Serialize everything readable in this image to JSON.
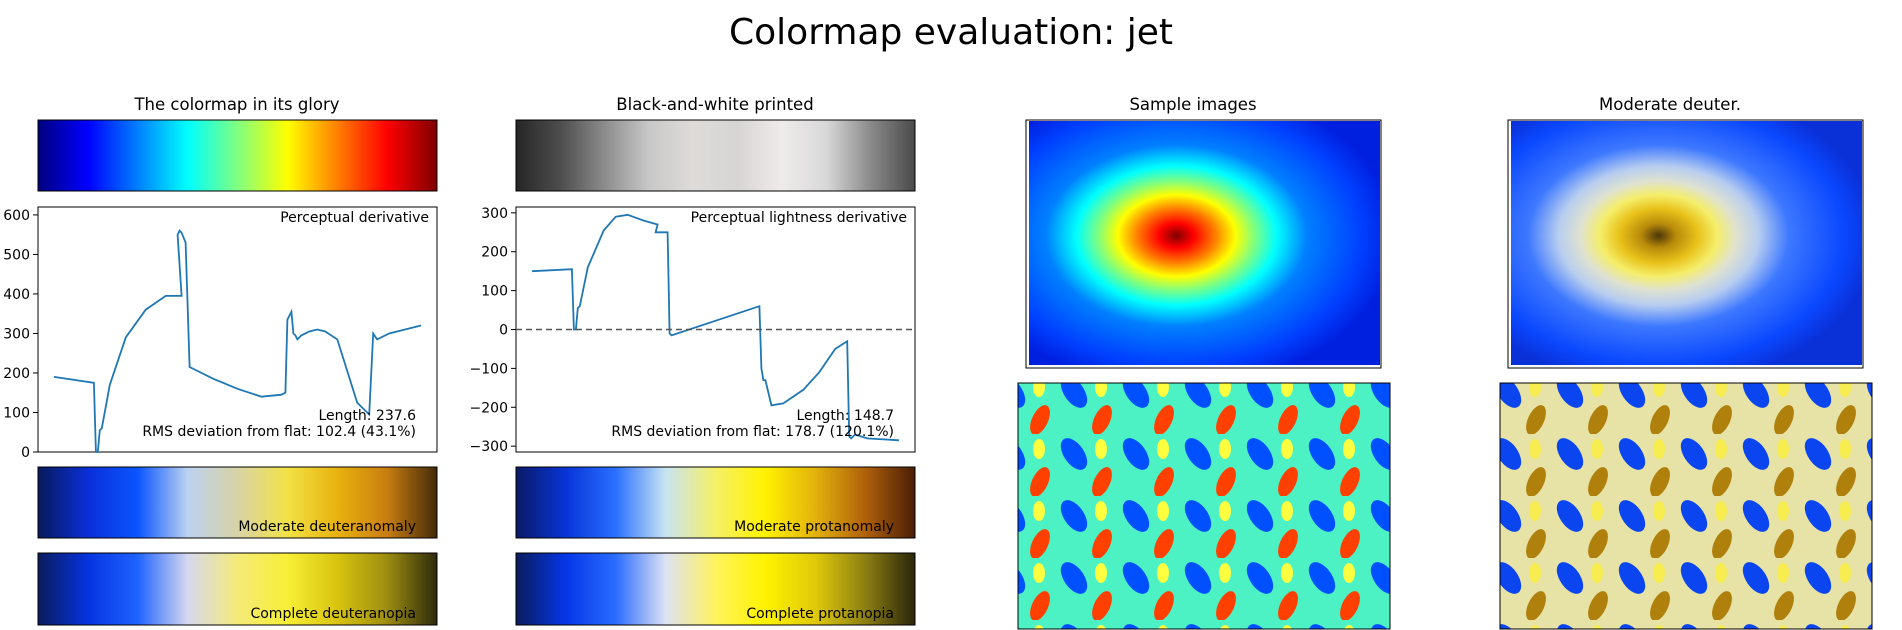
{
  "figure": {
    "title": "Colormap evaluation: jet"
  },
  "panels": {
    "colormap": {
      "title": "The colormap in its glory",
      "stops": [
        "#00007f",
        "#0000ff",
        "#007fff",
        "#00ffff",
        "#7fff7f",
        "#ffff00",
        "#ff7f00",
        "#ff0000",
        "#7f0000"
      ]
    },
    "bw": {
      "title": "Black-and-white printed",
      "stops": [
        "#262626",
        "#4d4d4d",
        "#8c8c8c",
        "#c8c8c8",
        "#dedbd9",
        "#d7d5d3",
        "#efebeb",
        "#d8d8d8",
        "#8a8a8a",
        "#4a4a4a"
      ]
    },
    "deut_moderate": {
      "label": "Moderate deuteranomaly",
      "stops": [
        "#071a5a",
        "#0a2fd8",
        "#0a55ff",
        "#bcd2f0",
        "#d8d3a6",
        "#f2e246",
        "#e8b20e",
        "#c87d10",
        "#442a0a"
      ]
    },
    "deut_complete": {
      "label": "Complete deuteranopia",
      "stops": [
        "#0a1c5c",
        "#0633e0",
        "#1f63ff",
        "#d6d8ef",
        "#f5ea78",
        "#f7ef36",
        "#d8c40f",
        "#9c8d0f",
        "#2d2a0c"
      ]
    },
    "prot_moderate": {
      "label": "Moderate protanomaly",
      "stops": [
        "#0a1a66",
        "#0834d8",
        "#2a70ff",
        "#c8e4f2",
        "#f5f066",
        "#fff200",
        "#e2b20c",
        "#b0600a",
        "#4a1e06"
      ]
    },
    "prot_complete": {
      "label": "Complete protanopia",
      "stops": [
        "#0a1c5c",
        "#0536e8",
        "#2a6cff",
        "#dde2f4",
        "#fff35e",
        "#fff300",
        "#e0c90a",
        "#8c7f12",
        "#2a250c"
      ]
    },
    "samples": {
      "title": "Sample images"
    },
    "deut_samples": {
      "title": "Moderate deuter."
    }
  },
  "chart_data": [
    {
      "type": "line",
      "annotation_title": "Perceptual derivative",
      "annotation_length": "Length: 237.6",
      "annotation_rms": "RMS deviation from flat: 102.4 (43.1%)",
      "xlim": [
        0,
        1
      ],
      "ylim": [
        0,
        620
      ],
      "yticks": [
        0,
        100,
        200,
        300,
        400,
        500,
        600
      ],
      "y_tick_labels": [
        "0",
        "100",
        "200",
        "300",
        "400",
        "500",
        "600"
      ],
      "color": "#1f77b4",
      "x": [
        0.04,
        0.14,
        0.145,
        0.15,
        0.155,
        0.16,
        0.18,
        0.22,
        0.27,
        0.32,
        0.36,
        0.35,
        0.355,
        0.36,
        0.37,
        0.38,
        0.39,
        0.44,
        0.5,
        0.56,
        0.61,
        0.62,
        0.625,
        0.635,
        0.64,
        0.645,
        0.65,
        0.66,
        0.68,
        0.7,
        0.72,
        0.75,
        0.8,
        0.83,
        0.84,
        0.85,
        0.88,
        0.96
      ],
      "y": [
        190,
        175,
        0,
        0,
        55,
        60,
        170,
        290,
        360,
        395,
        395,
        550,
        560,
        555,
        530,
        215,
        210,
        185,
        160,
        140,
        145,
        150,
        335,
        355,
        300,
        295,
        285,
        295,
        305,
        310,
        305,
        285,
        125,
        95,
        300,
        285,
        300,
        320
      ]
    },
    {
      "type": "line",
      "annotation_title": "Perceptual lightness derivative",
      "annotation_length": "Length: 148.7",
      "annotation_rms": "RMS deviation from flat: 178.7 (120.1%)",
      "xlim": [
        0,
        1
      ],
      "ylim": [
        -315,
        315
      ],
      "yticks": [
        -300,
        -200,
        -100,
        0,
        100,
        200,
        300
      ],
      "y_tick_labels": [
        "−300",
        "−200",
        "−100",
        "0",
        "100",
        "200",
        "300"
      ],
      "reference_line": 0,
      "color": "#1f77b4",
      "x": [
        0.04,
        0.14,
        0.145,
        0.15,
        0.155,
        0.16,
        0.18,
        0.22,
        0.25,
        0.28,
        0.32,
        0.355,
        0.35,
        0.36,
        0.38,
        0.385,
        0.39,
        0.61,
        0.615,
        0.62,
        0.625,
        0.64,
        0.67,
        0.72,
        0.76,
        0.8,
        0.83,
        0.835,
        0.84,
        0.85,
        0.88,
        0.96
      ],
      "y": [
        150,
        155,
        0,
        0,
        55,
        60,
        160,
        255,
        290,
        295,
        280,
        270,
        250,
        250,
        250,
        -10,
        -15,
        60,
        -100,
        -130,
        -130,
        -195,
        -190,
        -155,
        -110,
        -50,
        -30,
        -275,
        -280,
        -270,
        -280,
        -285
      ]
    }
  ]
}
